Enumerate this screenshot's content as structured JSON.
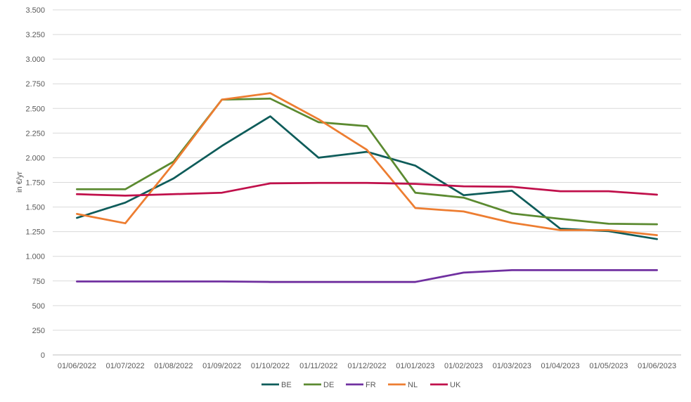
{
  "chart_data": {
    "type": "line",
    "title": "",
    "xlabel": "",
    "ylabel": "in €/yr",
    "ylim": [
      0,
      3500
    ],
    "yticks": [
      0,
      250,
      500,
      750,
      1000,
      1250,
      1500,
      1750,
      2000,
      2250,
      2500,
      2750,
      3000,
      3250,
      3500
    ],
    "ytick_labels": [
      "0",
      "250",
      "500",
      "750",
      "1.000",
      "1.250",
      "1.500",
      "1.750",
      "2.000",
      "2.250",
      "2.500",
      "2.750",
      "3.000",
      "3.250",
      "3.500"
    ],
    "categories": [
      "01/06/2022",
      "01/07/2022",
      "01/08/2022",
      "01/09/2022",
      "01/10/2022",
      "01/11/2022",
      "01/12/2022",
      "01/01/2023",
      "01/02/2023",
      "01/03/2023",
      "01/04/2023",
      "01/05/2023",
      "01/06/2023"
    ],
    "grid": "horizontal",
    "legend_position": "bottom",
    "series": [
      {
        "name": "BE",
        "color": "#0E5C5A",
        "values": [
          1390,
          1545,
          1790,
          2120,
          2420,
          2000,
          2060,
          1920,
          1620,
          1665,
          1280,
          1255,
          1175
        ]
      },
      {
        "name": "DE",
        "color": "#5B8A30",
        "values": [
          1680,
          1680,
          1960,
          2590,
          2600,
          2360,
          2320,
          1645,
          1595,
          1435,
          1380,
          1330,
          1325
        ]
      },
      {
        "name": "FR",
        "color": "#7030A0",
        "values": [
          745,
          745,
          745,
          745,
          740,
          740,
          740,
          740,
          835,
          860,
          860,
          860,
          860
        ]
      },
      {
        "name": "NL",
        "color": "#ED7D31",
        "values": [
          1430,
          1335,
          1940,
          2590,
          2655,
          2390,
          2080,
          1490,
          1455,
          1340,
          1265,
          1265,
          1215
        ]
      },
      {
        "name": "UK",
        "color": "#C0104B",
        "values": [
          1630,
          1615,
          1630,
          1645,
          1740,
          1745,
          1745,
          1735,
          1710,
          1705,
          1660,
          1660,
          1625
        ]
      }
    ]
  }
}
